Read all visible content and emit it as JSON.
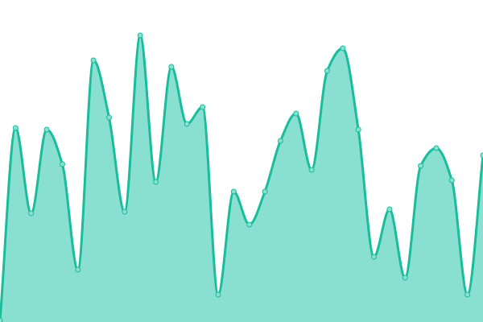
{
  "chart_data": {
    "type": "area",
    "title": "",
    "xlabel": "",
    "ylabel": "",
    "grid": false,
    "legend": "none",
    "x": [
      0,
      1,
      2,
      3,
      4,
      5,
      6,
      7,
      8,
      9,
      10,
      11,
      12,
      13,
      14,
      15,
      16,
      17,
      18,
      19,
      20,
      21,
      22,
      23,
      24,
      25,
      26,
      27,
      28,
      29,
      30,
      31
    ],
    "series": [
      {
        "values": [
          2,
          241,
          135,
          239,
          196,
          65,
          325,
          254,
          137,
          356,
          174,
          317,
          246,
          267,
          34,
          162,
          121,
          162,
          225,
          259,
          189,
          312,
          340,
          239,
          81,
          140,
          55,
          194,
          216,
          176,
          34,
          207
        ]
      }
    ],
    "xlim": [
      0,
      31
    ],
    "ylim": [
      0,
      400
    ],
    "colors": {
      "line": "#1abc9c",
      "fill": "#89e0d0",
      "point_fill": "#89e0d0"
    },
    "curve": "smooth"
  }
}
